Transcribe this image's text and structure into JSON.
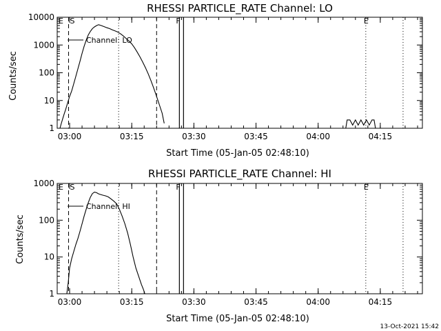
{
  "footer": {
    "timestamp": "13-Oct-2021 15:42"
  },
  "chart_data": [
    {
      "type": "line",
      "title": "RHESSI PARTICLE_RATE Channel: LO",
      "xlabel": "Start Time (05-Jan-05 02:48:10)",
      "ylabel": "Counts/sec",
      "x_tick_labels": [
        "03:00",
        "03:15",
        "03:30",
        "03:45",
        "04:00",
        "04:15"
      ],
      "x_ticks_min": [
        180,
        1080,
        1980,
        2880,
        3780,
        4680
      ],
      "xlim": [
        0,
        5290
      ],
      "yscale": "log",
      "ylim": [
        1,
        10000
      ],
      "y_tick_labels": [
        "1",
        "10",
        "100",
        "1000",
        "10000"
      ],
      "y_tick_values": [
        1,
        10,
        100,
        1000,
        10000
      ],
      "legend": {
        "label": "Channel: LO",
        "position": "top-left"
      },
      "markers": {
        "E_label": "E",
        "S_label": "S",
        "F_label": "F",
        "E2_label": "E",
        "E_x": 0,
        "S_x": 165,
        "F_x": 1830,
        "E2_x": 4470,
        "dashed_x": [
          165,
          1440
        ],
        "dotted_x": [
          890,
          4470,
          5010
        ],
        "solid_x": [
          1770,
          1830
        ]
      },
      "series": [
        {
          "x": [
            40,
            60,
            80,
            100,
            120,
            150,
            180,
            210,
            240,
            270,
            300,
            330,
            360,
            390,
            420,
            450,
            480,
            510,
            540,
            570,
            600,
            640,
            680,
            720,
            760,
            800,
            840,
            880,
            920,
            960,
            1000,
            1040,
            1080,
            1120,
            1160,
            1200,
            1240,
            1280,
            1320,
            1360,
            1400,
            1440,
            1480,
            1520,
            1550
          ],
          "y": [
            1,
            1.5,
            2.2,
            3.2,
            4.5,
            8,
            14,
            22,
            40,
            75,
            140,
            260,
            500,
            900,
            1500,
            2300,
            3100,
            3900,
            4500,
            5000,
            5400,
            5000,
            4600,
            4200,
            3900,
            3500,
            3200,
            2900,
            2500,
            2100,
            1700,
            1400,
            1100,
            800,
            550,
            370,
            240,
            150,
            90,
            50,
            27,
            14,
            7,
            3.5,
            1.5
          ]
        },
        {
          "x": [
            4180,
            4200,
            4240,
            4280,
            4320,
            4360,
            4400,
            4440,
            4480,
            4520,
            4560,
            4590,
            4610
          ],
          "y": [
            1,
            2,
            2,
            1.3,
            2,
            1.3,
            2,
            1.3,
            2,
            1.3,
            2,
            2,
            1
          ]
        }
      ]
    },
    {
      "type": "line",
      "title": "RHESSI PARTICLE_RATE Channel: HI",
      "xlabel": "Start Time (05-Jan-05 02:48:10)",
      "ylabel": "Counts/sec",
      "x_tick_labels": [
        "03:00",
        "03:15",
        "03:30",
        "03:45",
        "04:00",
        "04:15"
      ],
      "x_ticks_min": [
        180,
        1080,
        1980,
        2880,
        3780,
        4680
      ],
      "xlim": [
        0,
        5290
      ],
      "yscale": "log",
      "ylim": [
        1,
        1000
      ],
      "y_tick_labels": [
        "1",
        "10",
        "100",
        "1000"
      ],
      "y_tick_values": [
        1,
        10,
        100,
        1000
      ],
      "legend": {
        "label": "Channel: HI",
        "position": "top-left"
      },
      "markers": {
        "E_label": "E",
        "S_label": "S",
        "F_label": "F",
        "E2_label": "E",
        "E_x": 0,
        "S_x": 165,
        "F_x": 1830,
        "E2_x": 4470,
        "dashed_x": [
          165,
          1440
        ],
        "dotted_x": [
          890,
          4470,
          5010
        ],
        "solid_x": [
          1770,
          1830
        ]
      },
      "series": [
        {
          "x": [
            140,
            160,
            180,
            210,
            240,
            270,
            300,
            330,
            360,
            390,
            420,
            450,
            480,
            510,
            540,
            570,
            600,
            630,
            660,
            700,
            740,
            780,
            820,
            860,
            900,
            940,
            980,
            1020,
            1060,
            1100,
            1140,
            1180,
            1220,
            1250,
            1270
          ],
          "y": [
            1,
            2,
            5,
            9,
            14,
            22,
            32,
            50,
            80,
            130,
            200,
            300,
            420,
            530,
            580,
            560,
            520,
            500,
            480,
            460,
            430,
            380,
            330,
            280,
            200,
            130,
            80,
            45,
            22,
            10,
            5,
            3,
            1.8,
            1.3,
            1
          ]
        }
      ]
    }
  ]
}
